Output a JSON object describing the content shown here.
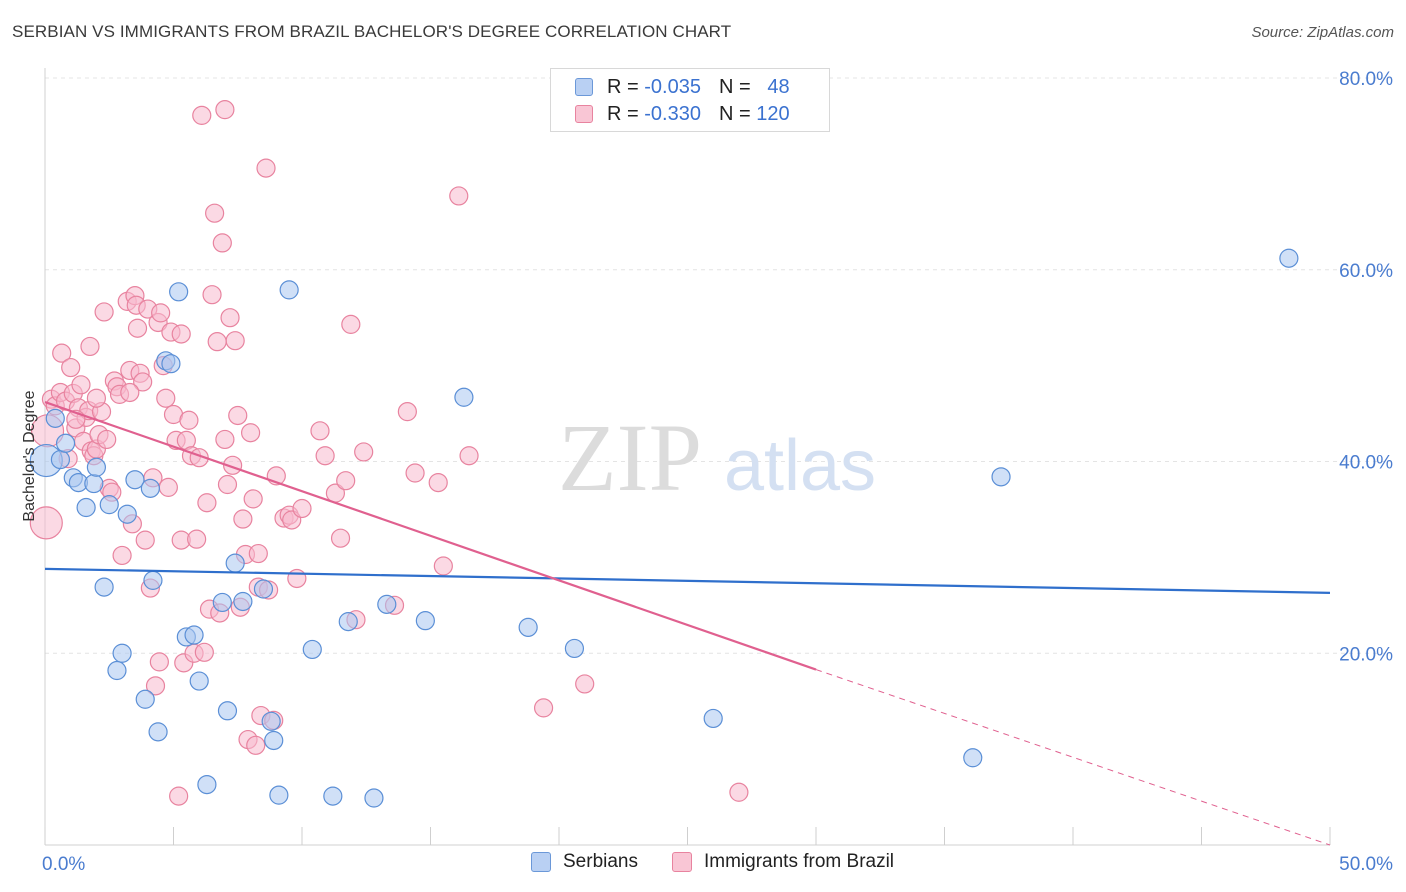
{
  "title": "SERBIAN VS IMMIGRANTS FROM BRAZIL BACHELOR'S DEGREE CORRELATION CHART",
  "source": "Source: ZipAtlas.com",
  "watermark": {
    "zip": "ZIP",
    "atlas": "atlas"
  },
  "colors": {
    "serbians_fill": "#a9c6f0",
    "serbians_stroke": "#5b8fd6",
    "serbians_line": "#2f6fcc",
    "brazil_fill": "#f7b9cd",
    "brazil_stroke": "#e8839f",
    "brazil_line": "#e0608f",
    "grid": "#e4e4e4",
    "tick_label": "#4a7ccf"
  },
  "legend": {
    "rows": [
      {
        "r_label": "R =",
        "r_value": "-0.035",
        "n_label": "N =",
        "n_value": "48"
      },
      {
        "r_label": "R =",
        "r_value": "-0.330",
        "n_label": "N =",
        "n_value": "120"
      }
    ]
  },
  "bottom_legend": {
    "serbians": "Serbians",
    "brazil": "Immigrants from Brazil"
  },
  "chart_data": {
    "type": "scatter",
    "title": "SERBIAN VS IMMIGRANTS FROM BRAZIL BACHELOR'S DEGREE CORRELATION CHART",
    "xlabel": "",
    "ylabel": "Bachelor's Degree",
    "xlim": [
      0,
      50
    ],
    "ylim": [
      0,
      80
    ],
    "x_tick_labels": [
      "0.0%",
      "50.0%"
    ],
    "y_tick_values": [
      20,
      40,
      60,
      80
    ],
    "y_tick_labels": [
      "20.0%",
      "40.0%",
      "60.0%",
      "80.0%"
    ],
    "grid": true,
    "legend_position": "top-center",
    "series": [
      {
        "name": "Serbians",
        "points": [
          [
            0.05,
            40.1
          ],
          [
            0.4,
            44.5
          ],
          [
            0.6,
            40.2
          ],
          [
            0.8,
            41.9
          ],
          [
            1.1,
            38.3
          ],
          [
            1.3,
            37.8
          ],
          [
            1.6,
            35.2
          ],
          [
            1.9,
            37.7
          ],
          [
            2.0,
            39.4
          ],
          [
            2.3,
            26.9
          ],
          [
            2.5,
            35.5
          ],
          [
            2.8,
            18.2
          ],
          [
            3.0,
            20.0
          ],
          [
            3.2,
            34.5
          ],
          [
            3.5,
            38.1
          ],
          [
            3.9,
            15.2
          ],
          [
            4.1,
            37.2
          ],
          [
            4.2,
            27.6
          ],
          [
            4.4,
            11.8
          ],
          [
            4.7,
            50.5
          ],
          [
            4.9,
            50.2
          ],
          [
            5.2,
            57.7
          ],
          [
            5.5,
            21.7
          ],
          [
            5.8,
            21.9
          ],
          [
            6.0,
            17.1
          ],
          [
            6.3,
            6.3
          ],
          [
            6.9,
            25.3
          ],
          [
            7.1,
            14.0
          ],
          [
            7.4,
            29.4
          ],
          [
            7.7,
            25.4
          ],
          [
            8.5,
            26.7
          ],
          [
            8.8,
            12.9
          ],
          [
            8.9,
            10.9
          ],
          [
            9.1,
            5.2
          ],
          [
            9.5,
            57.9
          ],
          [
            10.4,
            20.4
          ],
          [
            11.2,
            5.1
          ],
          [
            11.8,
            23.3
          ],
          [
            12.8,
            4.9
          ],
          [
            13.3,
            25.1
          ],
          [
            14.8,
            23.4
          ],
          [
            16.3,
            46.7
          ],
          [
            18.8,
            22.7
          ],
          [
            20.6,
            20.5
          ],
          [
            26.0,
            13.2
          ],
          [
            36.1,
            9.1
          ],
          [
            37.2,
            38.4
          ],
          [
            48.4,
            61.2
          ]
        ]
      },
      {
        "name": "Immigrants from Brazil",
        "points": [
          [
            0.05,
            33.6
          ],
          [
            0.1,
            43.2
          ],
          [
            0.25,
            46.5
          ],
          [
            0.4,
            45.8
          ],
          [
            0.6,
            47.2
          ],
          [
            0.65,
            51.3
          ],
          [
            0.8,
            46.3
          ],
          [
            0.9,
            40.3
          ],
          [
            1.0,
            49.8
          ],
          [
            1.1,
            47.1
          ],
          [
            1.2,
            43.5
          ],
          [
            1.3,
            45.6
          ],
          [
            1.4,
            48.0
          ],
          [
            1.5,
            42.1
          ],
          [
            1.6,
            44.6
          ],
          [
            1.7,
            45.3
          ],
          [
            1.75,
            52.0
          ],
          [
            1.8,
            41.1
          ],
          [
            1.9,
            40.6
          ],
          [
            2.0,
            41.3
          ],
          [
            2.1,
            42.8
          ],
          [
            2.2,
            45.2
          ],
          [
            2.3,
            55.6
          ],
          [
            2.4,
            42.3
          ],
          [
            2.5,
            37.2
          ],
          [
            2.6,
            36.8
          ],
          [
            2.7,
            48.4
          ],
          [
            2.8,
            47.8
          ],
          [
            2.9,
            47.0
          ],
          [
            3.0,
            30.2
          ],
          [
            3.2,
            56.7
          ],
          [
            3.3,
            49.5
          ],
          [
            3.4,
            33.5
          ],
          [
            3.5,
            57.3
          ],
          [
            3.55,
            56.3
          ],
          [
            3.6,
            53.9
          ],
          [
            3.7,
            49.2
          ],
          [
            3.8,
            48.3
          ],
          [
            3.9,
            31.8
          ],
          [
            4.0,
            55.9
          ],
          [
            4.1,
            26.8
          ],
          [
            4.2,
            38.3
          ],
          [
            4.3,
            16.6
          ],
          [
            4.4,
            54.5
          ],
          [
            4.45,
            19.1
          ],
          [
            4.5,
            55.5
          ],
          [
            4.6,
            50.0
          ],
          [
            4.7,
            46.6
          ],
          [
            4.8,
            37.3
          ],
          [
            4.9,
            53.5
          ],
          [
            5.0,
            44.9
          ],
          [
            5.1,
            42.2
          ],
          [
            5.2,
            5.1
          ],
          [
            5.3,
            31.8
          ],
          [
            5.4,
            19.0
          ],
          [
            5.5,
            42.2
          ],
          [
            5.6,
            44.3
          ],
          [
            5.7,
            40.6
          ],
          [
            5.8,
            20.0
          ],
          [
            5.9,
            31.9
          ],
          [
            6.0,
            40.4
          ],
          [
            6.1,
            76.1
          ],
          [
            6.3,
            35.7
          ],
          [
            6.4,
            24.6
          ],
          [
            6.5,
            57.4
          ],
          [
            6.6,
            65.9
          ],
          [
            6.7,
            52.5
          ],
          [
            6.8,
            24.2
          ],
          [
            6.9,
            62.8
          ],
          [
            7.0,
            76.7
          ],
          [
            7.1,
            37.6
          ],
          [
            7.2,
            55.0
          ],
          [
            7.3,
            39.6
          ],
          [
            7.4,
            52.6
          ],
          [
            7.5,
            44.8
          ],
          [
            7.6,
            24.8
          ],
          [
            7.7,
            34.0
          ],
          [
            7.8,
            30.3
          ],
          [
            7.9,
            11.0
          ],
          [
            8.0,
            43.0
          ],
          [
            8.1,
            36.1
          ],
          [
            8.2,
            10.4
          ],
          [
            8.3,
            26.9
          ],
          [
            8.4,
            13.5
          ],
          [
            8.6,
            70.6
          ],
          [
            8.7,
            26.6
          ],
          [
            8.9,
            13.0
          ],
          [
            9.0,
            38.5
          ],
          [
            9.3,
            34.1
          ],
          [
            9.5,
            34.4
          ],
          [
            9.6,
            33.9
          ],
          [
            9.8,
            27.8
          ],
          [
            10.7,
            43.2
          ],
          [
            10.9,
            40.6
          ],
          [
            11.3,
            36.7
          ],
          [
            11.5,
            32.0
          ],
          [
            11.7,
            38.0
          ],
          [
            11.9,
            54.3
          ],
          [
            12.1,
            23.5
          ],
          [
            12.4,
            41.0
          ],
          [
            13.6,
            25.0
          ],
          [
            14.1,
            45.2
          ],
          [
            14.4,
            38.8
          ],
          [
            15.3,
            37.8
          ],
          [
            15.5,
            29.1
          ],
          [
            16.1,
            67.7
          ],
          [
            16.5,
            40.6
          ],
          [
            19.4,
            14.3
          ],
          [
            21.0,
            16.8
          ],
          [
            27.0,
            5.5
          ],
          [
            1.2,
            44.4
          ],
          [
            2.0,
            46.6
          ],
          [
            3.3,
            47.2
          ],
          [
            5.3,
            53.3
          ],
          [
            6.2,
            20.1
          ],
          [
            8.3,
            30.4
          ],
          [
            10.0,
            35.1
          ],
          [
            7.0,
            42.3
          ]
        ]
      }
    ],
    "trend_lines": [
      {
        "series": "Serbians",
        "from": [
          0,
          28.8
        ],
        "to": [
          50,
          26.3
        ],
        "style": "solid"
      },
      {
        "series": "Immigrants from Brazil",
        "from": [
          0,
          46.2
        ],
        "to": [
          30,
          18.3
        ],
        "style": "solid"
      },
      {
        "series": "Immigrants from Brazil",
        "from": [
          30,
          18.3
        ],
        "to": [
          50,
          0
        ],
        "style": "dashed"
      }
    ]
  }
}
